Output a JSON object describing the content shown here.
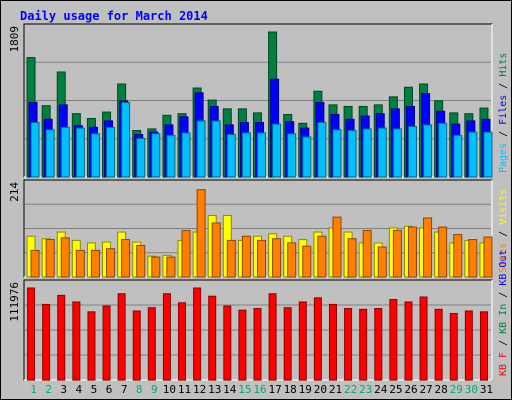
{
  "colors": {
    "background": "#c0c0c0",
    "title": "#0000ff",
    "pages": "#00bfff",
    "files": "#0000ff",
    "hits": "#008040",
    "visits": "#ffff00",
    "sites": "#ff8000",
    "kbin": "#008040",
    "kbout": "#0000ff",
    "kbf": "#ff0000",
    "weekday_label": "#008000",
    "weekend_label": "#00aa77"
  },
  "chart_data": {
    "type": "bar",
    "title": "Daily usage for March 2014",
    "categories": [
      "1",
      "2",
      "3",
      "4",
      "5",
      "6",
      "7",
      "8",
      "9",
      "10",
      "11",
      "12",
      "13",
      "14",
      "15",
      "16",
      "17",
      "18",
      "19",
      "20",
      "21",
      "22",
      "23",
      "24",
      "25",
      "26",
      "27",
      "28",
      "29",
      "30",
      "31"
    ],
    "weekend_days": [
      "1",
      "2",
      "8",
      "9",
      "15",
      "16",
      "22",
      "23",
      "29",
      "30"
    ],
    "panels": [
      {
        "name": "hits-files-pages",
        "ymax_label": "1809",
        "ylim": [
          0,
          1809
        ],
        "legend": [
          {
            "text": "Pages",
            "color_key": "pages"
          },
          {
            "text": "Files",
            "color_key": "files"
          },
          {
            "text": "Hits",
            "color_key": "hits"
          }
        ],
        "separator": " / ",
        "series": [
          {
            "name": "Hits",
            "color_key": "hits",
            "values": [
              1490,
              890,
              1310,
              790,
              730,
              810,
              1160,
              580,
              600,
              770,
              790,
              1110,
              960,
              850,
              850,
              800,
              1809,
              780,
              670,
              1070,
              900,
              880,
              880,
              900,
              1000,
              1120,
              1160,
              950,
              800,
              790,
              860
            ]
          },
          {
            "name": "Files",
            "color_key": "files",
            "values": [
              930,
              720,
              900,
              640,
              620,
              700,
              950,
              530,
              560,
              650,
              750,
              1050,
              880,
              650,
              680,
              680,
              1220,
              690,
              610,
              930,
              780,
              720,
              760,
              790,
              850,
              880,
              1040,
              820,
              660,
              700,
              720
            ]
          },
          {
            "name": "Pages",
            "color_key": "pages",
            "values": [
              680,
              590,
              620,
              610,
              540,
              620,
              930,
              480,
              540,
              520,
              550,
              700,
              700,
              530,
              550,
              550,
              660,
              540,
              500,
              680,
              590,
              580,
              600,
              610,
              600,
              630,
              650,
              670,
              520,
              560,
              560
            ]
          }
        ]
      },
      {
        "name": "sites-visits",
        "ymax_label": "214",
        "ylim": [
          0,
          214
        ],
        "legend": [
          {
            "text": "Sites",
            "color_key": "sites"
          },
          {
            "text": "Visits",
            "color_key": "visits"
          }
        ],
        "separator": " / ",
        "series": [
          {
            "name": "Visits",
            "color_key": "visits",
            "values": [
              98,
              92,
              108,
              88,
              82,
              84,
              108,
              84,
              50,
              52,
              88,
              108,
              148,
              148,
              88,
              98,
              104,
              98,
              90,
              108,
              118,
              108,
              82,
              82,
              118,
              122,
              118,
              108,
              82,
              88,
              82
            ]
          },
          {
            "name": "Sites",
            "color_key": "sites",
            "values": [
              64,
              90,
              94,
              64,
              64,
              68,
              90,
              76,
              48,
              48,
              112,
              210,
              130,
              88,
              98,
              88,
              92,
              82,
              74,
              98,
              144,
              92,
              112,
              72,
              112,
              120,
              142,
              120,
              102,
              90,
              96
            ]
          }
        ]
      },
      {
        "name": "kbytes",
        "ymax_label": "111976",
        "ylim": [
          0,
          111976
        ],
        "legend": [
          {
            "text": "KB F",
            "color_key": "kbf"
          },
          {
            "text": "KB In",
            "color_key": "kbin"
          },
          {
            "text": "KB Out",
            "color_key": "kbout"
          }
        ],
        "separator": " / ",
        "series": [
          {
            "name": "KB F",
            "color_key": "kbf",
            "values": [
              111976,
              92000,
              103000,
              95000,
              83000,
              90000,
              105000,
              84000,
              88000,
              105000,
              94000,
              111976,
              102000,
              90000,
              85000,
              87000,
              105000,
              88000,
              95000,
              100000,
              92000,
              87000,
              86000,
              87000,
              98000,
              95000,
              101000,
              86000,
              81000,
              84000,
              83000
            ]
          }
        ]
      }
    ]
  }
}
